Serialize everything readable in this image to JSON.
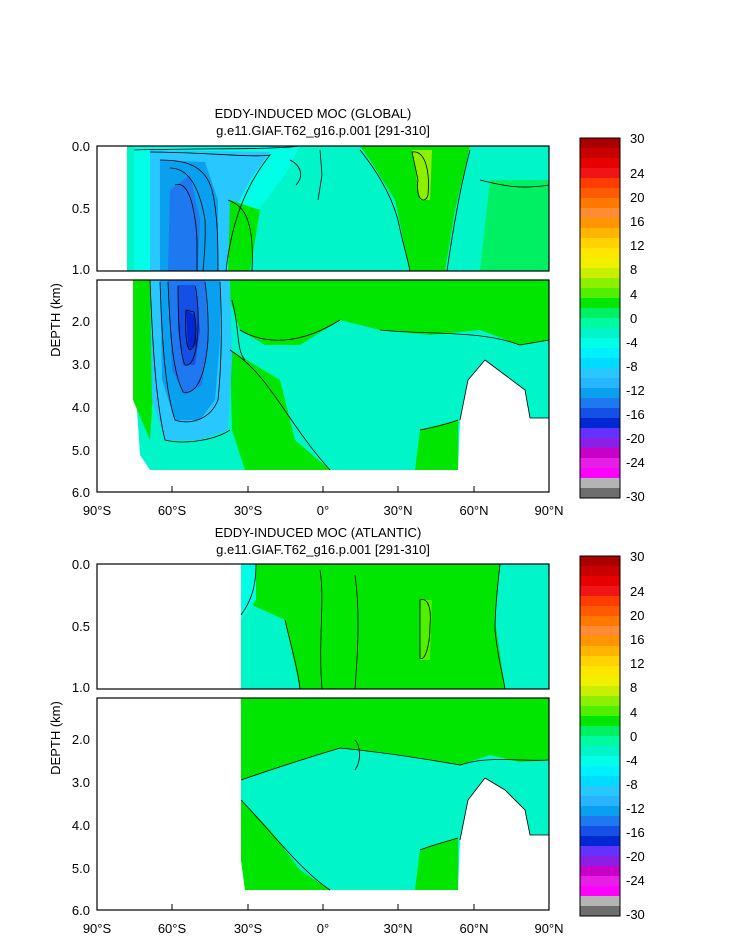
{
  "colors": {
    "levels": [
      "#6e6e6e",
      "#b4b4b4",
      "#ff00ff",
      "#e61ee6",
      "#c800c8",
      "#8c1ee6",
      "#6432ff",
      "#0028d2",
      "#1450e6",
      "#1e78f0",
      "#0aa0f0",
      "#28b4ff",
      "#28c8ff",
      "#00dcff",
      "#00f0ff",
      "#00ffe6",
      "#00f5c8",
      "#00faa0",
      "#00f064",
      "#00e600",
      "#50f000",
      "#8cf000",
      "#c8f000",
      "#f0f000",
      "#ffe600",
      "#ffd200",
      "#ffb400",
      "#ff9600",
      "#ff8c32",
      "#ff7800",
      "#ff5a00",
      "#ff3c00",
      "#f01414",
      "#e60000",
      "#c80000",
      "#aa0000"
    ]
  },
  "chart_data": [
    {
      "type": "heatmap",
      "title": "EDDY-INDUCED MOC (GLOBAL)",
      "subtitle": "g.e11.GIAF.T62_g16.p.001 [291-310]",
      "ylabel": "DEPTH (km)",
      "x_ticks": [
        "90°S",
        "60°S",
        "30°S",
        "0°",
        "30°N",
        "60°N",
        "90°N"
      ],
      "x_range": [
        -90,
        90
      ],
      "upper_y_ticks": [
        "0.0",
        "0.5",
        "1.0"
      ],
      "upper_y_range": [
        0,
        1
      ],
      "lower_y_ticks": [
        "2.0",
        "3.0",
        "4.0",
        "5.0",
        "6.0"
      ],
      "lower_y_range": [
        1,
        6
      ],
      "colorbar_labels": [
        "30",
        "24",
        "20",
        "16",
        "12",
        "8",
        "4",
        "0",
        "-4",
        "-8",
        "-12",
        "-16",
        "-20",
        "-24",
        "-30"
      ],
      "features": [
        {
          "desc": "minimum cell",
          "lat": -52,
          "depth": 2.2,
          "value": -16
        },
        {
          "desc": "weak positive cell",
          "lat": 40,
          "depth": 0.3,
          "value": 6
        }
      ]
    },
    {
      "type": "heatmap",
      "title": "EDDY-INDUCED MOC (ATLANTIC)",
      "subtitle": "g.e11.GIAF.T62_g16.p.001 [291-310]",
      "ylabel": "DEPTH (km)",
      "x_ticks": [
        "90°S",
        "60°S",
        "30°S",
        "0°",
        "30°N",
        "60°N",
        "90°N"
      ],
      "x_range": [
        -90,
        90
      ],
      "upper_y_ticks": [
        "0.0",
        "0.5",
        "1.0"
      ],
      "upper_y_range": [
        0,
        1
      ],
      "lower_y_ticks": [
        "2.0",
        "3.0",
        "4.0",
        "5.0",
        "6.0"
      ],
      "lower_y_range": [
        1,
        6
      ],
      "colorbar_labels": [
        "30",
        "24",
        "20",
        "16",
        "12",
        "8",
        "4",
        "0",
        "-4",
        "-8",
        "-12",
        "-16",
        "-20",
        "-24",
        "-30"
      ],
      "features": [
        {
          "desc": "weak positive band",
          "lat": 25,
          "depth": 0.5,
          "value": 3
        }
      ]
    }
  ]
}
